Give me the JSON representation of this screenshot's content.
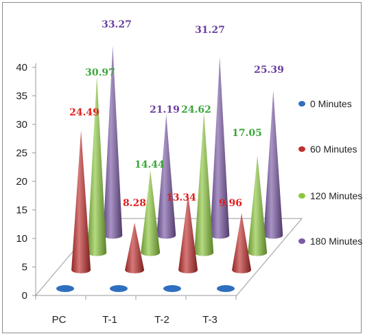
{
  "chart_data": {
    "type": "bar",
    "style": "3d-cone",
    "categories": [
      "PC",
      "T-1",
      "T-2",
      "T-3"
    ],
    "series": [
      {
        "name": "0 Minutes",
        "color": "#2e6fbf",
        "values": [
          0,
          0,
          0,
          0
        ]
      },
      {
        "name": "60 Minutes",
        "color": "#c0302e",
        "values": [
          24.49,
          8.28,
          13.34,
          9.96
        ]
      },
      {
        "name": "120 Minutes",
        "color": "#8cc63e",
        "values": [
          30.97,
          14.44,
          24.62,
          17.05
        ]
      },
      {
        "name": "180 Minutes",
        "color": "#7b5aa6",
        "values": [
          33.27,
          21.19,
          31.27,
          25.39
        ]
      }
    ],
    "data_labels": [
      {
        "text": "24.49",
        "series": 1,
        "category": 0
      },
      {
        "text": "30.97",
        "series": 2,
        "category": 0
      },
      {
        "text": "33.27",
        "series": 3,
        "category": 0
      },
      {
        "text": "8.28",
        "series": 1,
        "category": 1
      },
      {
        "text": "14.44",
        "series": 2,
        "category": 1
      },
      {
        "text": "21.19",
        "series": 3,
        "category": 1
      },
      {
        "text": "13.34",
        "series": 1,
        "category": 2
      },
      {
        "text": "24.62",
        "series": 2,
        "category": 2
      },
      {
        "text": "31.27",
        "series": 3,
        "category": 2
      },
      {
        "text": "9.96",
        "series": 1,
        "category": 3
      },
      {
        "text": "17.05",
        "series": 2,
        "category": 3
      },
      {
        "text": "25.39",
        "series": 3,
        "category": 3
      }
    ],
    "y_ticks": [
      "0",
      "5",
      "10",
      "15",
      "20",
      "25",
      "30",
      "35",
      "40"
    ],
    "ylim": [
      0,
      40
    ],
    "legend_position": "right",
    "title": "",
    "xlabel": "",
    "ylabel": ""
  }
}
